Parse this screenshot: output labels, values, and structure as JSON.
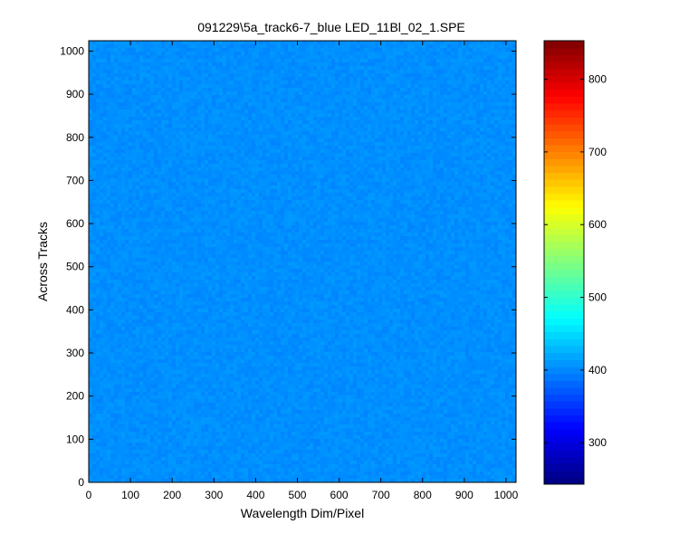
{
  "chart_data": {
    "type": "heatmap",
    "title": "091229\\5a_track6-7_blue LED_11Bl_02_1.SPE",
    "xlabel": "Wavelength Dim/Pixel",
    "ylabel": "Across Tracks",
    "xlim": [
      0,
      1024
    ],
    "ylim": [
      0,
      1024
    ],
    "x_ticks": [
      0,
      100,
      200,
      300,
      400,
      500,
      600,
      700,
      800,
      900,
      1000
    ],
    "y_ticks": [
      0,
      100,
      200,
      300,
      400,
      500,
      600,
      700,
      800,
      900,
      1000
    ],
    "colormap": "jet",
    "colorbar": {
      "range": [
        243,
        853
      ],
      "ticks": [
        300,
        400,
        500,
        600,
        700,
        800
      ]
    },
    "typical_value": 405,
    "value_spread": 6,
    "grid": false,
    "legend": "none"
  }
}
